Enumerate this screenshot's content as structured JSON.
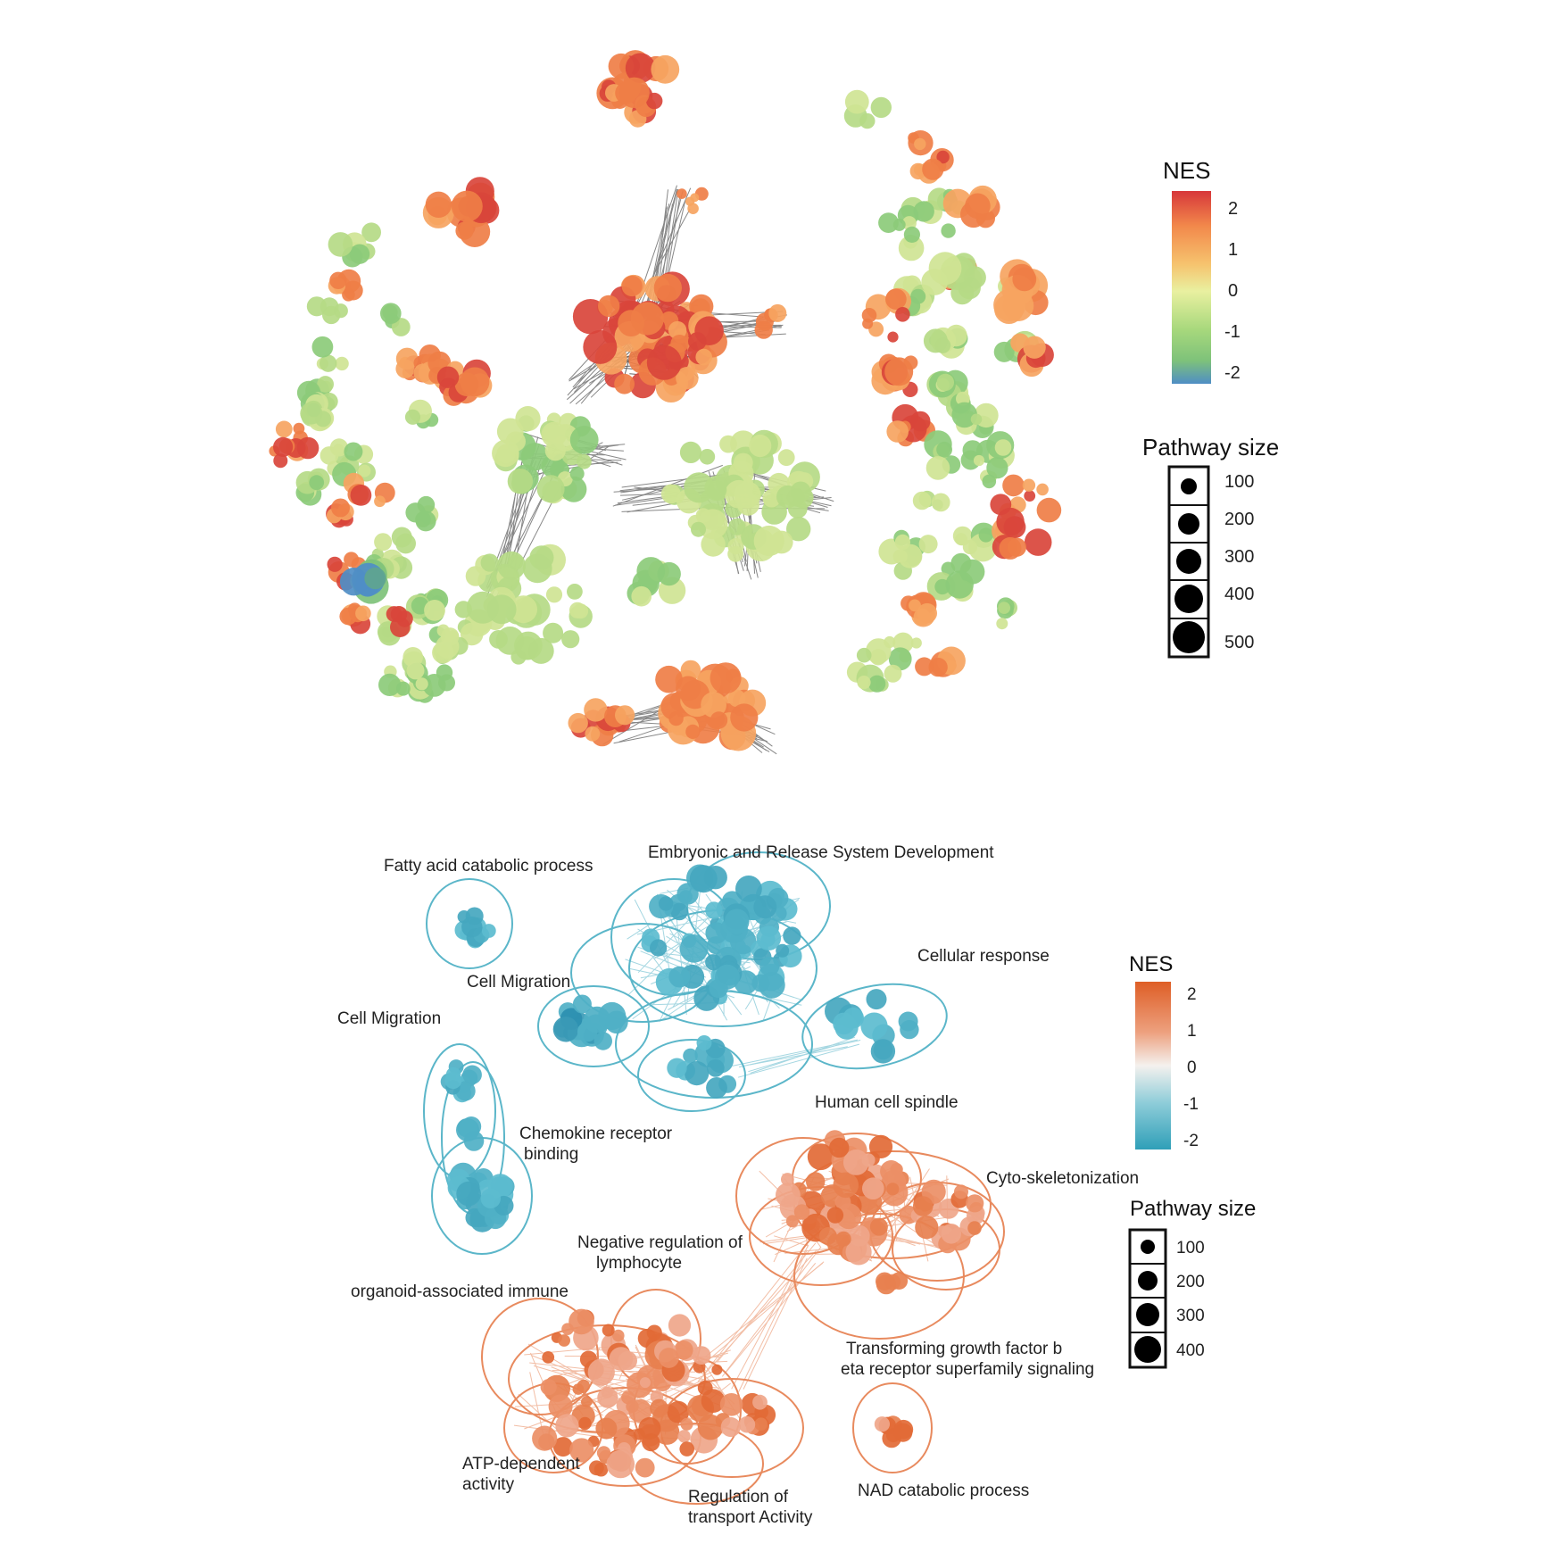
{
  "top_panel": {
    "legend": {
      "color_title": "NES",
      "color_ticks": [
        "2",
        "1",
        "0",
        "-1",
        "-2"
      ],
      "size_title": "Pathway size",
      "size_ticks": [
        "100",
        "200",
        "300",
        "400",
        "500"
      ],
      "gradient": [
        "#d7373a",
        "#f2884b",
        "#f6c36e",
        "#e9f0a0",
        "#a7d87c",
        "#7ec27a",
        "#4f8ec5"
      ]
    }
  },
  "bottom_panel": {
    "cluster_labels": {
      "fatty_acid": "Fatty acid catabolic process",
      "embryonic": "Embryonic and Release System Development",
      "cell_migration_1": "Cell Migration",
      "cellular_response": "Cellular response",
      "cell_migration_2": "Cell Migration",
      "chemokine_1": "Chemokine receptor",
      "chemokine_2": "binding",
      "human_spindle": "Human cell spindle",
      "cyto": "Cyto-skeletonization",
      "neg_reg_1": "Negative regulation of",
      "neg_reg_2": "lymphocyte",
      "organoid": "organoid-associated immune",
      "tgf_1": "Transforming growth factor b",
      "tgf_2": "eta receptor superfamily signaling",
      "atp_1": "ATP-dependent",
      "atp_2": "activity",
      "regulation_1": "Regulation of",
      "regulation_2": "transport Activity",
      "nad": "NAD catabolic process"
    },
    "legend": {
      "color_title": "NES",
      "color_ticks": [
        "2",
        "1",
        "0",
        "-1",
        "-2"
      ],
      "size_title": "Pathway size",
      "size_ticks": [
        "100",
        "200",
        "300",
        "400"
      ],
      "gradient": [
        "#de5e26",
        "#eda07e",
        "#f4f1ee",
        "#8fcdd9",
        "#2f9fb8"
      ]
    }
  },
  "colors": {
    "red": "#d9453b",
    "orange": "#ef7e47",
    "light_orange": "#f6a461",
    "yellow_green": "#cfe494",
    "light_green": "#b5da86",
    "green": "#8ccb7a",
    "teal_node": "#4fb0c6",
    "teal_dark": "#2b8fb0",
    "teal_outline": "#5bb6c9",
    "orange_node": "#e7804f",
    "orange_light_node": "#efa68a",
    "orange_outline": "#e88a5e"
  }
}
